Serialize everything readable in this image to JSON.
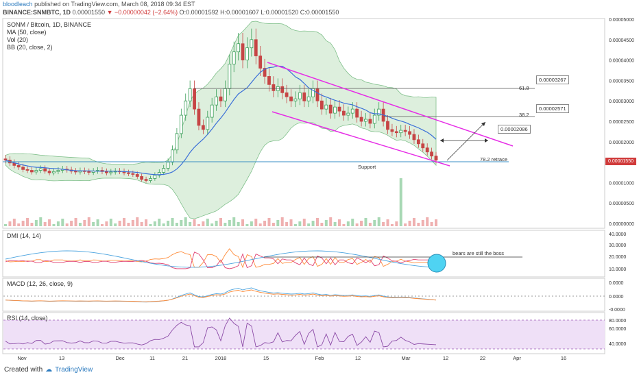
{
  "header": {
    "author": "bloodleach",
    "published": "published on TradingView.com, March 08, 2018 09:34 EST",
    "symbol": "BINANCE:SNMBTC, 1D",
    "price": "0.00001550",
    "change": "−0.00000042 (−2.64%)",
    "ohlc": "O:0.00001592 H:0.00001607 L:0.00001520 C:0.00001550"
  },
  "legend": {
    "title": "SONM / Bitcoin, 1D, BINANCE",
    "ma": "MA (50, close)",
    "vol": "Vol (20)",
    "bb": "BB (20, close, 2)",
    "dmi": "DMI (14, 14)",
    "macd": "MACD (12, 26, close, 9)",
    "rsi": "RSI (14, close)"
  },
  "annotations": {
    "fib618": "61.8",
    "fib382": "38.2",
    "fib782": "78.2 retrace",
    "support": "Support",
    "box1": "0.00003267",
    "box2": "0.00002571",
    "box3": "0.00002086",
    "dmi_note": "bears are still the boss",
    "last_price": "0.00001550"
  },
  "footer": {
    "created": "Created with",
    "brand": "TradingView"
  },
  "colors": {
    "up": "#3a9e58",
    "down": "#c64545",
    "ma": "#3a6fd8",
    "bb_fill": "#cfe8cf",
    "channel": "#e62ee6",
    "dmi_plus": "#ff8c3a",
    "dmi_minus": "#e04070",
    "adx": "#4aa3df",
    "rsi_fill": "#efe0f7",
    "rsi_line": "#8b4aa6"
  },
  "chart_data": {
    "type": "candlestick",
    "price_axis_ticks": [
      "0.00005000",
      "0.00004500",
      "0.00004000",
      "0.00003500",
      "0.00003000",
      "0.00002500",
      "0.00002000",
      "0.00001550",
      "0.00001000",
      "0.00000500",
      "0.00000000"
    ],
    "dmi_axis_ticks": [
      "40.0000",
      "30.0000",
      "20.0000",
      "10.0000"
    ],
    "macd_axis_ticks": [
      "0.0000",
      "0.0000",
      "-0.0000"
    ],
    "rsi_axis_ticks": [
      "80.0000",
      "60.0000",
      "40.0000"
    ],
    "x_ticks": [
      "Nov",
      "13",
      "Dec",
      "11",
      "21",
      "2018",
      "15",
      "Feb",
      "12",
      "Mar",
      "12",
      "22",
      "Apr",
      "16"
    ],
    "closes": [
      1.55e-05,
      1.48e-05,
      1.42e-05,
      1.38e-05,
      1.32e-05,
      1.3e-05,
      1.26e-05,
      1.3e-05,
      1.34e-05,
      1.28e-05,
      1.24e-05,
      1.27e-05,
      1.3e-05,
      1.33e-05,
      1.31e-05,
      1.28e-05,
      1.26e-05,
      1.29e-05,
      1.27e-05,
      1.25e-05,
      1.28e-05,
      1.3e-05,
      1.27e-05,
      1.24e-05,
      1.26e-05,
      1.28e-05,
      1.27e-05,
      1.24e-05,
      1.22e-05,
      1.2e-05,
      1.15e-05,
      1.08e-05,
      1.05e-05,
      1.1e-05,
      1.18e-05,
      1.25e-05,
      1.35e-05,
      1.5e-05,
      1.8e-05,
      2.2e-05,
      2.65e-05,
      3e-05,
      3.3e-05,
      2.8e-05,
      2.4e-05,
      2.3e-05,
      2.6e-05,
      2.9e-05,
      3.1e-05,
      3e-05,
      3.3e-05,
      3.9e-05,
      4.2e-05,
      4.4e-05,
      4e-05,
      4.3e-05,
      4.5e-05,
      4.1e-05,
      3.8e-05,
      3.6e-05,
      3.4e-05,
      3.25e-05,
      3.35e-05,
      3.2e-05,
      3.1e-05,
      3e-05,
      3.05e-05,
      3.2e-05,
      3e-05,
      3.1e-05,
      3.3e-05,
      3e-05,
      2.8e-05,
      2.9e-05,
      2.7e-05,
      2.85e-05,
      2.75e-05,
      2.65e-05,
      2.7e-05,
      2.8e-05,
      2.6e-05,
      2.5e-05,
      2.55e-05,
      2.45e-05,
      2.65e-05,
      2.8e-05,
      2.5e-05,
      2.3e-05,
      2.25e-05,
      2.22e-05,
      2.28e-05,
      2.25e-05,
      2.18e-05,
      2.05e-05,
      1.95e-05,
      1.85e-05,
      1.75e-05,
      1.65e-05,
      1.55e-05
    ],
    "volume_spike_index": 90
  }
}
